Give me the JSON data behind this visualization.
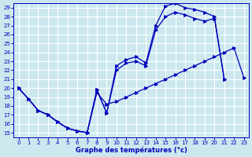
{
  "xlabel": "Graphe des températures (°c)",
  "xlim": [
    -0.5,
    23.5
  ],
  "ylim": [
    14.5,
    29.5
  ],
  "yticks": [
    15,
    16,
    17,
    18,
    19,
    20,
    21,
    22,
    23,
    24,
    25,
    26,
    27,
    28,
    29
  ],
  "xticks": [
    0,
    1,
    2,
    3,
    4,
    5,
    6,
    7,
    8,
    9,
    10,
    11,
    12,
    13,
    14,
    15,
    16,
    17,
    18,
    19,
    20,
    21,
    22,
    23
  ],
  "bg_color": "#cce8ee",
  "grid_color": "#ffffff",
  "line_color": "#0000bb",
  "curve1_x": [
    0,
    1,
    2,
    3,
    4,
    5,
    6,
    7,
    8,
    9,
    10,
    11,
    12,
    13,
    14,
    15,
    16,
    17,
    18,
    19,
    20,
    21
  ],
  "curve1_y": [
    20.0,
    18.8,
    17.5,
    17.0,
    16.2,
    15.5,
    15.2,
    15.0,
    19.8,
    17.2,
    22.5,
    23.2,
    23.5,
    22.8,
    27.0,
    29.2,
    29.5,
    29.0,
    28.8,
    28.5,
    28.0,
    21.0
  ],
  "curve2_x": [
    0,
    1,
    2,
    3,
    4,
    5,
    6,
    7,
    8,
    9,
    10,
    11,
    12,
    13,
    14,
    15,
    16,
    17,
    18,
    19,
    20,
    21
  ],
  "curve2_y": [
    20.0,
    18.8,
    17.5,
    17.0,
    16.2,
    15.5,
    15.2,
    15.0,
    19.8,
    17.2,
    22.0,
    22.8,
    23.0,
    22.5,
    26.5,
    28.0,
    28.5,
    28.2,
    27.8,
    27.5,
    27.8,
    21.0
  ],
  "curve3_x": [
    0,
    1,
    2,
    3,
    4,
    5,
    6,
    7,
    8,
    9,
    10,
    11,
    12,
    13,
    14,
    15,
    16,
    17,
    18,
    19,
    20,
    21,
    22,
    23
  ],
  "curve3_y": [
    20.0,
    18.8,
    17.5,
    17.0,
    16.2,
    15.5,
    15.2,
    15.0,
    19.5,
    18.2,
    18.5,
    19.0,
    19.5,
    20.0,
    20.5,
    21.0,
    21.5,
    22.0,
    22.5,
    23.0,
    23.5,
    24.0,
    24.5,
    21.2
  ]
}
